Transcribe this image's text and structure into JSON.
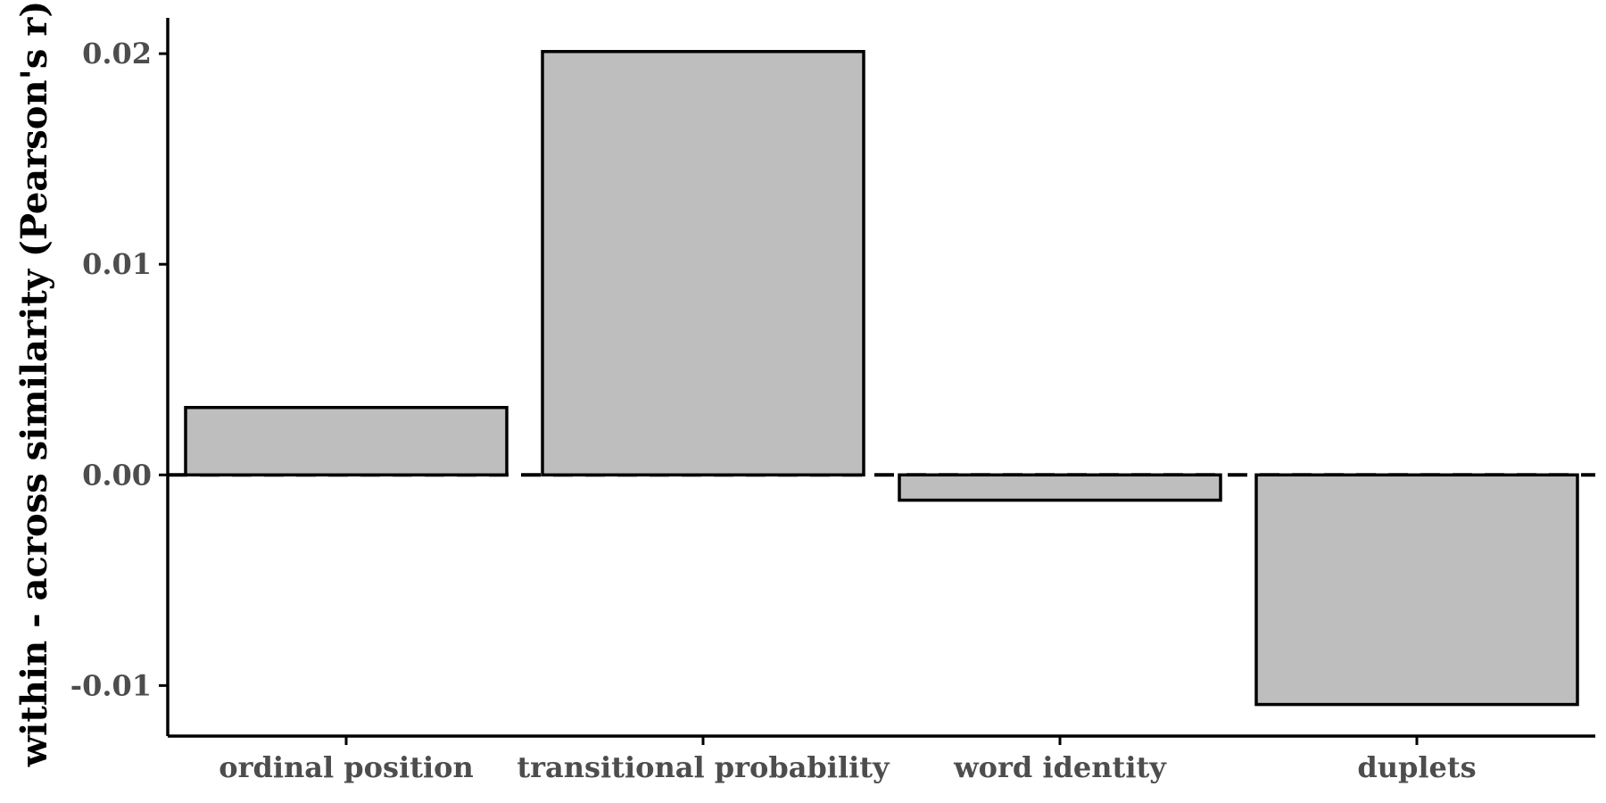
{
  "chart_data": {
    "type": "bar",
    "title": "",
    "xlabel": "",
    "ylabel": "within - across similarity (Pearson's r)",
    "categories": [
      "ordinal position",
      "transitional probability",
      "word identity",
      "duplets"
    ],
    "values": [
      0.0032,
      0.0201,
      -0.0012,
      -0.0109
    ],
    "ylim": [
      -0.0124,
      0.0217
    ],
    "yticks": [
      {
        "value": -0.01,
        "label": "-0.01"
      },
      {
        "value": 0.0,
        "label": "0.00"
      },
      {
        "value": 0.01,
        "label": "0.01"
      },
      {
        "value": 0.02,
        "label": "0.02"
      }
    ],
    "reference_line": {
      "value": 0.0,
      "style": "dashed"
    },
    "grid": false,
    "legend": "none",
    "colors": {
      "bar_fill": "#bebebe",
      "bar_stroke": "#000000",
      "axis": "#000000",
      "tick_label": "#4d4d4d"
    }
  }
}
